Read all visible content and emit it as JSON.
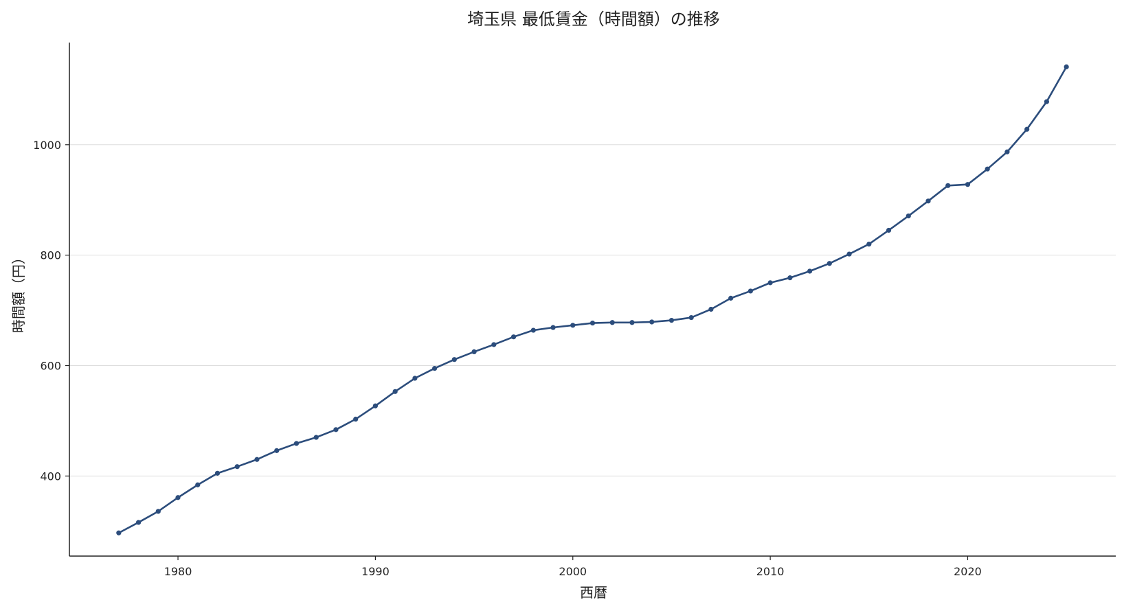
{
  "chart_data": {
    "type": "line",
    "title": "埼玉県 最低賃金（時間額）の推移",
    "xlabel": "西暦",
    "ylabel": "時間額（円）",
    "xlim": [
      1974.5,
      2027.5
    ],
    "ylim": [
      255,
      1185
    ],
    "x_ticks": [
      1980,
      1990,
      2000,
      2010,
      2020
    ],
    "y_ticks": [
      400,
      600,
      800,
      1000
    ],
    "grid": "horizontal",
    "colors": {
      "line": "#2c4d7c",
      "grid": "#dddddd",
      "axis": "#222222"
    },
    "series": [
      {
        "x": [
          1977,
          1978,
          1979,
          1980,
          1981,
          1982,
          1983,
          1984,
          1985,
          1986,
          1987,
          1988,
          1989,
          1990,
          1991,
          1992,
          1993,
          1994,
          1995,
          1996,
          1997,
          1998,
          1999,
          2000,
          2001,
          2002,
          2003,
          2004,
          2005,
          2006,
          2007,
          2008,
          2009,
          2010,
          2011,
          2012,
          2013,
          2014,
          2015,
          2016,
          2017,
          2018,
          2019,
          2020,
          2021,
          2022,
          2023,
          2024,
          2025
        ],
        "values": [
          297,
          316,
          336,
          361,
          384,
          405,
          417,
          430,
          446,
          459,
          470,
          484,
          503,
          527,
          553,
          577,
          595,
          611,
          625,
          638,
          652,
          664,
          669,
          673,
          677,
          678,
          678,
          679,
          682,
          687,
          702,
          722,
          735,
          750,
          759,
          771,
          785,
          802,
          820,
          845,
          871,
          898,
          926,
          928,
          956,
          987,
          1028,
          1078,
          1141
        ]
      }
    ]
  }
}
